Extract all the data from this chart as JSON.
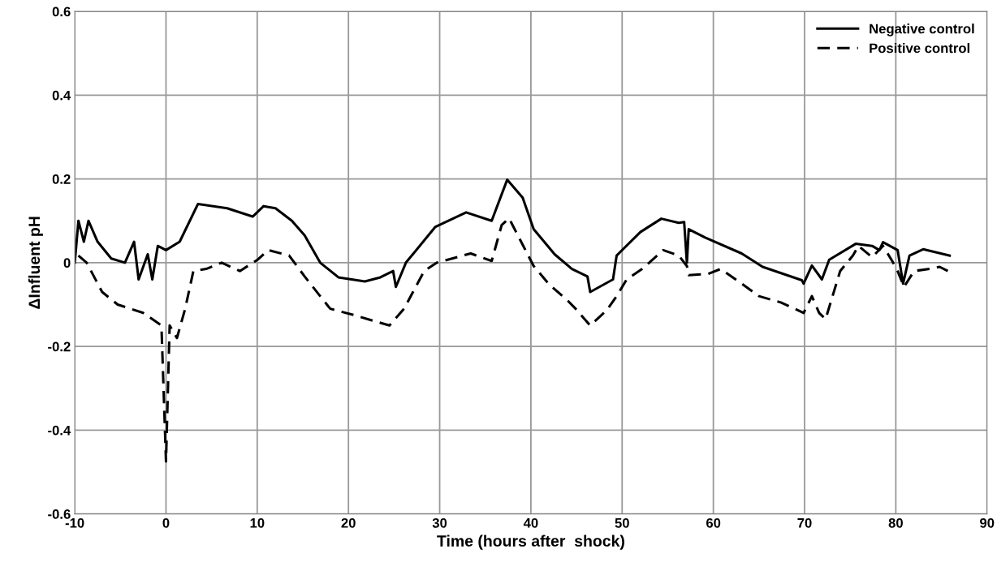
{
  "chart_data": {
    "type": "line",
    "xlabel": "Time (hours after  shock)",
    "ylabel": "ΔInfluent pH",
    "xlim": [
      -10,
      90
    ],
    "ylim": [
      -0.6,
      0.6
    ],
    "xticks": [
      -10,
      0,
      10,
      20,
      30,
      40,
      50,
      60,
      70,
      80,
      90
    ],
    "yticks": [
      -0.6,
      -0.4,
      -0.2,
      0,
      0.2,
      0.4,
      0.6
    ],
    "grid": true,
    "legend": "top right",
    "series": [
      {
        "name": "Negative control",
        "color": "#000000",
        "line_style": "solid",
        "x": [
          -10,
          -9.6,
          -9,
          -8.5,
          -7.5,
          -6,
          -4.5,
          -3.5,
          -3,
          -2,
          -1.5,
          -0.9,
          0,
          1.5,
          3.5,
          6.7,
          9.5,
          10.7,
          12,
          13.8,
          15.2,
          16.9,
          18.9,
          21.8,
          23.5,
          24.9,
          25.2,
          26.3,
          29.5,
          32.9,
          35.7,
          37.4,
          39.1,
          40.3,
          42.6,
          44.5,
          46.2,
          46.5,
          49,
          49.4,
          52,
          54.3,
          56.2,
          56.8,
          57.1,
          57.3,
          59.1,
          63.1,
          65.4,
          69.7,
          69.9,
          70.8,
          71.9,
          72.7,
          75.6,
          77.4,
          78.2,
          78.6,
          80.2,
          80.8,
          81.5,
          83,
          85.9
        ],
        "values": [
          0,
          0.1,
          0.05,
          0.1,
          0.05,
          0.01,
          0,
          0.05,
          -0.04,
          0.02,
          -0.04,
          0.04,
          0.03,
          0.05,
          0.14,
          0.13,
          0.11,
          0.135,
          0.13,
          0.1,
          0.065,
          0,
          -0.035,
          -0.045,
          -0.035,
          -0.02,
          -0.058,
          0,
          0.085,
          0.12,
          0.1,
          0.198,
          0.155,
          0.08,
          0.02,
          -0.015,
          -0.033,
          -0.07,
          -0.04,
          0.017,
          0.073,
          0.105,
          0.095,
          0.097,
          0,
          0.08,
          0.06,
          0.022,
          -0.01,
          -0.042,
          -0.05,
          -0.007,
          -0.04,
          0.007,
          0.045,
          0.04,
          0.03,
          0.049,
          0.03,
          -0.05,
          0.017,
          0.032,
          0.017
        ]
      },
      {
        "name": "Positive control",
        "color": "#000000",
        "line_style": "dashed",
        "x": [
          -9.6,
          -8.7,
          -7,
          -5.3,
          -2.5,
          -0.5,
          0,
          0.4,
          1.2,
          2.1,
          3,
          4.4,
          6.1,
          8.1,
          10.1,
          11.2,
          13.5,
          15.2,
          16.9,
          18,
          20.9,
          22.9,
          24.5,
          26.1,
          28.3,
          29.7,
          33.4,
          35.7,
          36.8,
          37.6,
          39.4,
          40.3,
          42,
          44,
          44.9,
          46.5,
          48.3,
          49.4,
          50.5,
          52.2,
          54.5,
          56.2,
          57.1,
          57.3,
          59.4,
          60.8,
          63.1,
          65,
          67.4,
          69.9,
          70.8,
          71.6,
          72.3,
          73.9,
          75.3,
          75.9,
          77.4,
          78.6,
          79.6,
          80.2,
          80.9,
          82,
          83.7,
          84.8,
          85.7
        ],
        "values": [
          0.017,
          0,
          -0.07,
          -0.1,
          -0.12,
          -0.15,
          -0.475,
          -0.15,
          -0.18,
          -0.11,
          -0.02,
          -0.015,
          0,
          -0.02,
          0.008,
          0.03,
          0.017,
          -0.033,
          -0.08,
          -0.11,
          -0.127,
          -0.14,
          -0.15,
          -0.11,
          -0.02,
          0,
          0.022,
          0.004,
          0.09,
          0.106,
          0.03,
          -0.008,
          -0.052,
          -0.09,
          -0.11,
          -0.15,
          -0.114,
          -0.08,
          -0.04,
          -0.015,
          0.03,
          0.017,
          -0.008,
          -0.03,
          -0.027,
          -0.015,
          -0.05,
          -0.08,
          -0.095,
          -0.12,
          -0.08,
          -0.12,
          -0.135,
          -0.02,
          0.017,
          0.04,
          0.013,
          0.04,
          0.004,
          -0.02,
          -0.058,
          -0.02,
          -0.015,
          -0.01,
          -0.02
        ]
      }
    ]
  }
}
